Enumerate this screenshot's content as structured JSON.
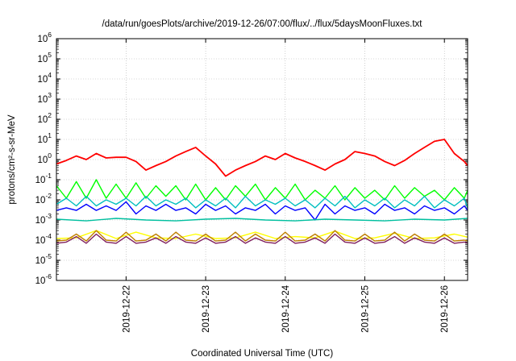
{
  "chart_data": {
    "type": "line",
    "title": "/data/run/goesPlots/archive/2019-12-26/07:00/flux/../flux/5daysMoonFluxes.txt",
    "xlabel": "Coordinated Universal Time (UTC)",
    "ylabel": "protons/cm²-s-sr-MeV",
    "y_scale": "log",
    "ylim": [
      1e-06,
      1000000.0
    ],
    "grid": true,
    "legend": "none",
    "x_axis": {
      "start": "2019-12-21T03:00",
      "end": "2019-12-26T07:00",
      "ticks": [
        "2019-12-22",
        "2019-12-23",
        "2019-12-24",
        "2019-12-25",
        "2019-12-26"
      ]
    },
    "y_ticks": [
      {
        "exp": "-6",
        "value": 1e-06
      },
      {
        "exp": "-5",
        "value": 1e-05
      },
      {
        "exp": "-4",
        "value": 0.0001
      },
      {
        "exp": "-3",
        "value": 0.001
      },
      {
        "exp": "-2",
        "value": 0.01
      },
      {
        "exp": "-1",
        "value": 0.1
      },
      {
        "exp": "0",
        "value": 1
      },
      {
        "exp": "1",
        "value": 10
      },
      {
        "exp": "2",
        "value": 100
      },
      {
        "exp": "3",
        "value": 1000
      },
      {
        "exp": "4",
        "value": 10000
      },
      {
        "exp": "5",
        "value": 100000
      },
      {
        "exp": "6",
        "value": 1000000
      }
    ],
    "series": [
      {
        "color": "#00ff00",
        "x": [
          "2019-12-21T03:00",
          "2019-12-21T06:00",
          "2019-12-21T09:00",
          "2019-12-21T12:00",
          "2019-12-21T15:00",
          "2019-12-21T18:00",
          "2019-12-21T21:00",
          "2019-12-22T00:00",
          "2019-12-22T03:00",
          "2019-12-22T06:00",
          "2019-12-22T09:00",
          "2019-12-22T12:00",
          "2019-12-22T15:00",
          "2019-12-22T18:00",
          "2019-12-22T21:00",
          "2019-12-23T00:00",
          "2019-12-23T03:00",
          "2019-12-23T06:00",
          "2019-12-23T09:00",
          "2019-12-23T12:00",
          "2019-12-23T15:00",
          "2019-12-23T18:00",
          "2019-12-23T21:00",
          "2019-12-24T00:00",
          "2019-12-24T03:00",
          "2019-12-24T06:00",
          "2019-12-24T09:00",
          "2019-12-24T12:00",
          "2019-12-24T15:00",
          "2019-12-24T18:00",
          "2019-12-24T21:00",
          "2019-12-25T00:00",
          "2019-12-25T03:00",
          "2019-12-25T06:00",
          "2019-12-25T09:00",
          "2019-12-25T12:00",
          "2019-12-25T15:00",
          "2019-12-25T18:00",
          "2019-12-25T21:00",
          "2019-12-26T00:00",
          "2019-12-26T03:00",
          "2019-12-26T06:00",
          "2019-12-26T07:00"
        ],
        "values": [
          0.05,
          0.012,
          0.08,
          0.012,
          0.1,
          0.012,
          0.06,
          0.012,
          0.07,
          0.012,
          0.05,
          0.015,
          0.05,
          0.01,
          0.06,
          0.01,
          0.04,
          0.01,
          0.05,
          0.015,
          0.06,
          0.01,
          0.04,
          0.012,
          0.06,
          0.01,
          0.03,
          0.012,
          0.05,
          0.01,
          0.04,
          0.012,
          0.03,
          0.01,
          0.05,
          0.012,
          0.04,
          0.015,
          0.03,
          0.01,
          0.04,
          0.012,
          0.03
        ]
      },
      {
        "color": "#00bfbf",
        "x": [
          "2019-12-21T03:00",
          "2019-12-21T06:00",
          "2019-12-21T09:00",
          "2019-12-21T12:00",
          "2019-12-21T15:00",
          "2019-12-21T18:00",
          "2019-12-21T21:00",
          "2019-12-22T00:00",
          "2019-12-22T03:00",
          "2019-12-22T06:00",
          "2019-12-22T09:00",
          "2019-12-22T12:00",
          "2019-12-22T15:00",
          "2019-12-22T18:00",
          "2019-12-22T21:00",
          "2019-12-23T00:00",
          "2019-12-23T03:00",
          "2019-12-23T06:00",
          "2019-12-23T09:00",
          "2019-12-23T12:00",
          "2019-12-23T15:00",
          "2019-12-23T18:00",
          "2019-12-23T21:00",
          "2019-12-24T00:00",
          "2019-12-24T03:00",
          "2019-12-24T06:00",
          "2019-12-24T09:00",
          "2019-12-24T12:00",
          "2019-12-24T15:00",
          "2019-12-24T18:00",
          "2019-12-24T21:00",
          "2019-12-25T00:00",
          "2019-12-25T03:00",
          "2019-12-25T06:00",
          "2019-12-25T09:00",
          "2019-12-25T12:00",
          "2019-12-25T15:00",
          "2019-12-25T18:00",
          "2019-12-25T21:00",
          "2019-12-26T00:00",
          "2019-12-26T03:00",
          "2019-12-26T06:00",
          "2019-12-26T07:00"
        ],
        "values": [
          0.006,
          0.012,
          0.005,
          0.015,
          0.005,
          0.01,
          0.006,
          0.012,
          0.005,
          0.015,
          0.005,
          0.01,
          0.006,
          0.012,
          0.004,
          0.01,
          0.005,
          0.012,
          0.004,
          0.015,
          0.005,
          0.01,
          0.006,
          0.012,
          0.005,
          0.01,
          0.004,
          0.012,
          0.005,
          0.015,
          0.004,
          0.01,
          0.005,
          0.012,
          0.004,
          0.01,
          0.005,
          0.015,
          0.004,
          0.01,
          0.005,
          0.012,
          0.004
        ]
      },
      {
        "color": "#0000ff",
        "x": [
          "2019-12-21T03:00",
          "2019-12-21T06:00",
          "2019-12-21T09:00",
          "2019-12-21T12:00",
          "2019-12-21T15:00",
          "2019-12-21T18:00",
          "2019-12-21T21:00",
          "2019-12-22T00:00",
          "2019-12-22T03:00",
          "2019-12-22T06:00",
          "2019-12-22T09:00",
          "2019-12-22T12:00",
          "2019-12-22T15:00",
          "2019-12-22T18:00",
          "2019-12-22T21:00",
          "2019-12-23T00:00",
          "2019-12-23T03:00",
          "2019-12-23T06:00",
          "2019-12-23T09:00",
          "2019-12-23T12:00",
          "2019-12-23T15:00",
          "2019-12-23T18:00",
          "2019-12-23T21:00",
          "2019-12-24T00:00",
          "2019-12-24T03:00",
          "2019-12-24T06:00",
          "2019-12-24T09:00",
          "2019-12-24T12:00",
          "2019-12-24T15:00",
          "2019-12-24T18:00",
          "2019-12-24T21:00",
          "2019-12-25T00:00",
          "2019-12-25T03:00",
          "2019-12-25T06:00",
          "2019-12-25T09:00",
          "2019-12-25T12:00",
          "2019-12-25T15:00",
          "2019-12-25T18:00",
          "2019-12-25T21:00",
          "2019-12-26T00:00",
          "2019-12-26T03:00",
          "2019-12-26T06:00",
          "2019-12-26T07:00"
        ],
        "values": [
          0.003,
          0.004,
          0.003,
          0.006,
          0.003,
          0.005,
          0.003,
          0.008,
          0.002,
          0.005,
          0.003,
          0.006,
          0.003,
          0.004,
          0.002,
          0.006,
          0.003,
          0.005,
          0.002,
          0.004,
          0.003,
          0.006,
          0.002,
          0.005,
          0.003,
          0.004,
          0.001,
          0.006,
          0.002,
          0.005,
          0.003,
          0.004,
          0.002,
          0.006,
          0.003,
          0.004,
          0.002,
          0.005,
          0.003,
          0.004,
          0.002,
          0.005,
          0.003
        ]
      },
      {
        "color": "#00bf9f",
        "x": [
          "2019-12-21T03:00",
          "2019-12-21T12:00",
          "2019-12-21T21:00",
          "2019-12-22T06:00",
          "2019-12-22T15:00",
          "2019-12-23T00:00",
          "2019-12-23T09:00",
          "2019-12-23T18:00",
          "2019-12-24T03:00",
          "2019-12-24T12:00",
          "2019-12-24T21:00",
          "2019-12-25T06:00",
          "2019-12-25T15:00",
          "2019-12-26T00:00",
          "2019-12-26T07:00"
        ],
        "values": [
          0.0011,
          0.0009,
          0.0012,
          0.001,
          0.0009,
          0.0011,
          0.0012,
          0.001,
          0.0009,
          0.0011,
          0.001,
          0.0009,
          0.0011,
          0.001,
          0.0012
        ]
      },
      {
        "color": "#ffff00",
        "x": [
          "2019-12-21T03:00",
          "2019-12-21T09:00",
          "2019-12-21T15:00",
          "2019-12-21T21:00",
          "2019-12-22T03:00",
          "2019-12-22T09:00",
          "2019-12-22T15:00",
          "2019-12-22T21:00",
          "2019-12-23T03:00",
          "2019-12-23T09:00",
          "2019-12-23T15:00",
          "2019-12-23T21:00",
          "2019-12-24T03:00",
          "2019-12-24T09:00",
          "2019-12-24T15:00",
          "2019-12-24T21:00",
          "2019-12-25T03:00",
          "2019-12-25T09:00",
          "2019-12-25T15:00",
          "2019-12-25T21:00",
          "2019-12-26T03:00",
          "2019-12-26T07:00"
        ],
        "values": [
          0.00012,
          0.00013,
          0.0003,
          0.00012,
          0.00025,
          0.00013,
          0.00012,
          0.0002,
          0.00012,
          0.00013,
          0.00025,
          0.00012,
          0.00015,
          0.00013,
          0.00028,
          0.00012,
          0.00013,
          0.00022,
          0.00012,
          0.00013,
          0.0002,
          0.00014
        ]
      },
      {
        "color": "#bf7f00",
        "x": [
          "2019-12-21T03:00",
          "2019-12-21T06:00",
          "2019-12-21T09:00",
          "2019-12-21T12:00",
          "2019-12-21T15:00",
          "2019-12-21T18:00",
          "2019-12-21T21:00",
          "2019-12-22T00:00",
          "2019-12-22T03:00",
          "2019-12-22T06:00",
          "2019-12-22T09:00",
          "2019-12-22T12:00",
          "2019-12-22T15:00",
          "2019-12-22T18:00",
          "2019-12-22T21:00",
          "2019-12-23T00:00",
          "2019-12-23T03:00",
          "2019-12-23T06:00",
          "2019-12-23T09:00",
          "2019-12-23T12:00",
          "2019-12-23T15:00",
          "2019-12-23T18:00",
          "2019-12-23T21:00",
          "2019-12-24T00:00",
          "2019-12-24T03:00",
          "2019-12-24T06:00",
          "2019-12-24T09:00",
          "2019-12-24T12:00",
          "2019-12-24T15:00",
          "2019-12-24T18:00",
          "2019-12-24T21:00",
          "2019-12-25T00:00",
          "2019-12-25T03:00",
          "2019-12-25T06:00",
          "2019-12-25T09:00",
          "2019-12-25T12:00",
          "2019-12-25T15:00",
          "2019-12-25T18:00",
          "2019-12-25T21:00",
          "2019-12-26T00:00",
          "2019-12-26T03:00",
          "2019-12-26T06:00",
          "2019-12-26T07:00"
        ],
        "values": [
          9e-05,
          0.0001,
          0.0002,
          9e-05,
          0.0003,
          0.0001,
          9e-05,
          0.00025,
          9e-05,
          0.0001,
          0.0002,
          9e-05,
          0.00025,
          0.0001,
          9e-05,
          0.0002,
          9e-05,
          0.0001,
          0.00025,
          9e-05,
          0.0002,
          0.0001,
          9e-05,
          0.00025,
          9e-05,
          0.0001,
          0.0002,
          9e-05,
          0.0003,
          0.0001,
          9e-05,
          0.0002,
          9e-05,
          0.0001,
          0.00025,
          9e-05,
          0.0002,
          0.0001,
          9e-05,
          0.0002,
          9e-05,
          0.0001,
          9e-05
        ]
      },
      {
        "color": "#7f1f5f",
        "x": [
          "2019-12-21T03:00",
          "2019-12-21T06:00",
          "2019-12-21T09:00",
          "2019-12-21T12:00",
          "2019-12-21T15:00",
          "2019-12-21T18:00",
          "2019-12-21T21:00",
          "2019-12-22T00:00",
          "2019-12-22T03:00",
          "2019-12-22T06:00",
          "2019-12-22T09:00",
          "2019-12-22T12:00",
          "2019-12-22T15:00",
          "2019-12-22T18:00",
          "2019-12-22T21:00",
          "2019-12-23T00:00",
          "2019-12-23T03:00",
          "2019-12-23T06:00",
          "2019-12-23T09:00",
          "2019-12-23T12:00",
          "2019-12-23T15:00",
          "2019-12-23T18:00",
          "2019-12-23T21:00",
          "2019-12-24T00:00",
          "2019-12-24T03:00",
          "2019-12-24T06:00",
          "2019-12-24T09:00",
          "2019-12-24T12:00",
          "2019-12-24T15:00",
          "2019-12-24T18:00",
          "2019-12-24T21:00",
          "2019-12-25T00:00",
          "2019-12-25T03:00",
          "2019-12-25T06:00",
          "2019-12-25T09:00",
          "2019-12-25T12:00",
          "2019-12-25T15:00",
          "2019-12-25T18:00",
          "2019-12-25T21:00",
          "2019-12-26T00:00",
          "2019-12-26T03:00",
          "2019-12-26T06:00",
          "2019-12-26T07:00"
        ],
        "values": [
          7e-05,
          8e-05,
          0.00015,
          7e-05,
          0.0002,
          8e-05,
          7e-05,
          0.00015,
          7e-05,
          8e-05,
          0.00013,
          7e-05,
          0.00015,
          8e-05,
          7e-05,
          0.00013,
          7e-05,
          8e-05,
          0.00015,
          7e-05,
          0.00013,
          8e-05,
          7e-05,
          0.00015,
          7e-05,
          8e-05,
          0.00013,
          7e-05,
          0.0002,
          8e-05,
          7e-05,
          0.00013,
          7e-05,
          8e-05,
          0.00015,
          7e-05,
          0.00013,
          8e-05,
          7e-05,
          0.00013,
          7e-05,
          8e-05,
          7e-05
        ]
      },
      {
        "color": "#ff0000",
        "x": [
          "2019-12-21T03:00",
          "2019-12-21T06:00",
          "2019-12-21T09:00",
          "2019-12-21T12:00",
          "2019-12-21T15:00",
          "2019-12-21T18:00",
          "2019-12-21T21:00",
          "2019-12-22T00:00",
          "2019-12-22T03:00",
          "2019-12-22T06:00",
          "2019-12-22T09:00",
          "2019-12-22T12:00",
          "2019-12-22T15:00",
          "2019-12-22T18:00",
          "2019-12-22T21:00",
          "2019-12-23T00:00",
          "2019-12-23T03:00",
          "2019-12-23T06:00",
          "2019-12-23T09:00",
          "2019-12-23T12:00",
          "2019-12-23T15:00",
          "2019-12-23T18:00",
          "2019-12-23T21:00",
          "2019-12-24T00:00",
          "2019-12-24T03:00",
          "2019-12-24T06:00",
          "2019-12-24T09:00",
          "2019-12-24T12:00",
          "2019-12-24T15:00",
          "2019-12-24T18:00",
          "2019-12-24T21:00",
          "2019-12-25T00:00",
          "2019-12-25T03:00",
          "2019-12-25T06:00",
          "2019-12-25T09:00",
          "2019-12-25T12:00",
          "2019-12-25T15:00",
          "2019-12-25T18:00",
          "2019-12-25T21:00",
          "2019-12-26T00:00",
          "2019-12-26T03:00",
          "2019-12-26T06:00",
          "2019-12-26T07:00"
        ],
        "values": [
          0.6,
          0.9,
          1.5,
          1.0,
          2.0,
          1.2,
          1.3,
          1.3,
          0.8,
          0.3,
          0.5,
          0.8,
          1.5,
          2.5,
          4.0,
          1.5,
          0.6,
          0.15,
          0.3,
          0.5,
          0.8,
          1.5,
          1.0,
          2.0,
          1.2,
          0.8,
          0.5,
          0.3,
          0.6,
          1.0,
          2.5,
          2.0,
          1.5,
          0.8,
          0.5,
          0.9,
          2.0,
          4.0,
          8.0,
          10.0,
          2.0,
          0.8,
          0.5
        ]
      }
    ]
  }
}
